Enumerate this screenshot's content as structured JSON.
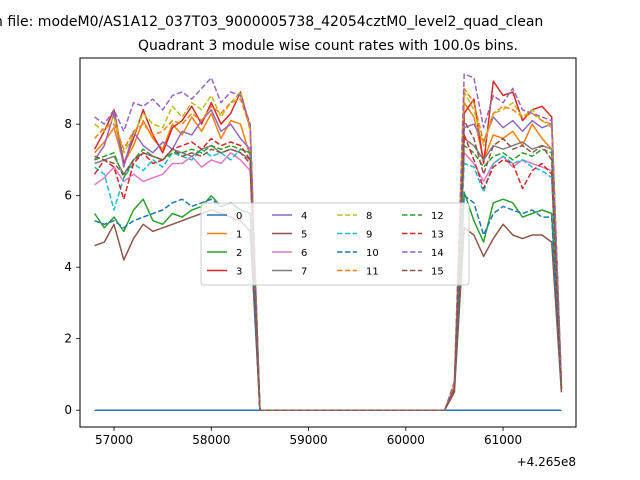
{
  "figure": {
    "suptitle": "n file: modeM0/AS1A12_037T03_9000005738_42054cztM0_level2_quad_clean",
    "title": "Quadrant 3 module wise count rates with 100.0s bins."
  },
  "chart_data": {
    "type": "line",
    "title": "Quadrant 3 module wise count rates with 100.0s bins.",
    "xlabel": "",
    "ylabel": "",
    "x_offset_label": "+4.265e8",
    "xlim": [
      56650,
      61750
    ],
    "ylim": [
      -0.47,
      9.85
    ],
    "xticks": [
      57000,
      58000,
      59000,
      60000,
      61000
    ],
    "yticks": [
      0,
      2,
      4,
      6,
      8
    ],
    "grid": false,
    "legend": {
      "location": "center",
      "ncol": 4
    },
    "x": [
      56800,
      56900,
      57000,
      57100,
      57200,
      57300,
      57400,
      57500,
      57600,
      57700,
      57800,
      57900,
      58000,
      58100,
      58200,
      58300,
      58400,
      58500,
      58600,
      58700,
      58800,
      58900,
      59000,
      59100,
      59200,
      59300,
      59400,
      59500,
      59600,
      59700,
      59800,
      59900,
      60000,
      60100,
      60200,
      60300,
      60400,
      60500,
      60600,
      60700,
      60800,
      60900,
      61000,
      61100,
      61200,
      61300,
      61400,
      61500,
      61600
    ],
    "series": [
      {
        "name": "0",
        "color": "#1f77b4",
        "dash": "solid",
        "values": [
          0,
          0,
          0,
          0,
          0,
          0,
          0,
          0,
          0,
          0,
          0,
          0,
          0,
          0,
          0,
          0,
          0,
          0,
          0,
          0,
          0,
          0,
          0,
          0,
          0,
          0,
          0,
          0,
          0,
          0,
          0,
          0,
          0,
          0,
          0,
          0,
          0,
          0,
          0,
          0,
          0,
          0,
          0,
          0,
          0,
          0,
          0,
          0,
          0
        ]
      },
      {
        "name": "1",
        "color": "#ff7f0e",
        "dash": "solid",
        "values": [
          7.2,
          7.5,
          7.9,
          6.9,
          7.4,
          8.1,
          7.6,
          7.3,
          8.0,
          7.7,
          8.2,
          7.8,
          8.3,
          7.6,
          8.1,
          8.0,
          7.1,
          0,
          0,
          0,
          0,
          0,
          0,
          0,
          0,
          0,
          0,
          0,
          0,
          0,
          0,
          0,
          0,
          0,
          0,
          0,
          0,
          0.6,
          8.6,
          8.2,
          7.0,
          7.7,
          7.6,
          7.8,
          7.4,
          8.0,
          7.6,
          7.3,
          0.6
        ]
      },
      {
        "name": "2",
        "color": "#2ca02c",
        "dash": "solid",
        "values": [
          5.5,
          5.1,
          5.4,
          5.0,
          5.6,
          5.9,
          5.3,
          5.2,
          5.5,
          5.4,
          5.6,
          5.7,
          6.0,
          5.7,
          5.8,
          5.6,
          5.5,
          0,
          0,
          0,
          0,
          0,
          0,
          0,
          0,
          0,
          0,
          0,
          0,
          0,
          0,
          0,
          0,
          0,
          0,
          0,
          0,
          0.6,
          6.1,
          5.3,
          4.7,
          5.8,
          5.9,
          5.8,
          5.4,
          5.5,
          5.6,
          5.5,
          0.6
        ]
      },
      {
        "name": "3",
        "color": "#d62728",
        "dash": "solid",
        "values": [
          7.3,
          7.8,
          8.4,
          6.9,
          7.6,
          8.4,
          7.7,
          7.2,
          7.9,
          8.1,
          8.5,
          8.0,
          8.6,
          8.0,
          8.3,
          8.9,
          7.9,
          0,
          0,
          0,
          0,
          0,
          0,
          0,
          0,
          0,
          0,
          0,
          0,
          0,
          0,
          0,
          0,
          0,
          0,
          0,
          0,
          0.7,
          8.3,
          8.7,
          6.9,
          9.2,
          8.8,
          8.9,
          8.1,
          8.4,
          8.5,
          8.2,
          0.7
        ]
      },
      {
        "name": "4",
        "color": "#9467bd",
        "dash": "solid",
        "values": [
          7.0,
          7.4,
          8.3,
          6.8,
          7.8,
          7.4,
          7.2,
          7.5,
          7.3,
          7.8,
          7.7,
          8.1,
          8.4,
          7.8,
          8.0,
          7.6,
          7.3,
          0,
          0,
          0,
          0,
          0,
          0,
          0,
          0,
          0,
          0,
          0,
          0,
          0,
          0,
          0,
          0,
          0,
          0,
          0,
          0,
          0.6,
          7.9,
          8.0,
          7.5,
          8.2,
          7.9,
          8.1,
          7.8,
          8.1,
          7.9,
          8.0,
          0.6
        ]
      },
      {
        "name": "5",
        "color": "#8c564b",
        "dash": "solid",
        "values": [
          4.6,
          4.7,
          5.2,
          4.2,
          4.8,
          5.2,
          5.0,
          5.1,
          5.2,
          5.3,
          5.4,
          5.5,
          5.6,
          5.5,
          5.4,
          5.3,
          5.0,
          0,
          0,
          0,
          0,
          0,
          0,
          0,
          0,
          0,
          0,
          0,
          0,
          0,
          0,
          0,
          0,
          0,
          0,
          0,
          0,
          0.5,
          5.1,
          4.9,
          4.3,
          4.8,
          5.2,
          4.9,
          4.8,
          4.9,
          4.9,
          4.7,
          0.5
        ]
      },
      {
        "name": "6",
        "color": "#e377c2",
        "dash": "solid",
        "values": [
          6.3,
          6.5,
          6.8,
          6.4,
          6.6,
          6.4,
          6.5,
          6.6,
          6.9,
          6.9,
          7.1,
          6.8,
          7.0,
          6.9,
          7.2,
          7.0,
          6.7,
          0,
          0,
          0,
          0,
          0,
          0,
          0,
          0,
          0,
          0,
          0,
          0,
          0,
          0,
          0,
          0,
          0,
          0,
          0,
          0,
          0.6,
          7.2,
          6.9,
          6.4,
          6.9,
          7.1,
          6.8,
          7.0,
          6.9,
          6.8,
          6.7,
          0.6
        ]
      },
      {
        "name": "7",
        "color": "#7f7f7f",
        "dash": "solid",
        "values": [
          6.9,
          7.0,
          7.1,
          6.6,
          7.0,
          7.2,
          7.1,
          7.0,
          7.3,
          7.2,
          7.1,
          7.3,
          7.4,
          7.2,
          7.3,
          7.2,
          7.0,
          0,
          0,
          0,
          0,
          0,
          0,
          0,
          0,
          0,
          0,
          0,
          0,
          0,
          0,
          0,
          0,
          0,
          0,
          0,
          0,
          0.6,
          7.6,
          7.4,
          7.0,
          7.4,
          7.3,
          7.4,
          7.5,
          7.3,
          7.4,
          7.3,
          0.6
        ]
      },
      {
        "name": "8",
        "color": "#bcbd22",
        "dash": "dashed",
        "values": [
          8.0,
          7.8,
          8.2,
          7.2,
          7.7,
          8.3,
          8.0,
          7.9,
          8.5,
          8.2,
          8.6,
          8.4,
          8.8,
          8.2,
          8.6,
          8.9,
          7.8,
          0,
          0,
          0,
          0,
          0,
          0,
          0,
          0,
          0,
          0,
          0,
          0,
          0,
          0,
          0,
          0,
          0,
          0,
          0,
          0,
          0.7,
          8.9,
          8.4,
          7.4,
          8.3,
          8.4,
          8.6,
          8.2,
          8.4,
          8.1,
          7.9,
          0.7
        ]
      },
      {
        "name": "9",
        "color": "#17becf",
        "dash": "dashed",
        "values": [
          6.8,
          6.6,
          5.6,
          6.5,
          6.9,
          6.7,
          7.0,
          6.8,
          7.2,
          7.1,
          7.0,
          7.3,
          7.1,
          7.2,
          7.0,
          7.3,
          7.2,
          0,
          0,
          0,
          0,
          0,
          0,
          0,
          0,
          0,
          0,
          0,
          0,
          0,
          0,
          0,
          0,
          0,
          0,
          0,
          0,
          0.6,
          6.9,
          6.8,
          6.1,
          6.9,
          7.1,
          6.9,
          7.0,
          6.8,
          6.7,
          6.5,
          0.6
        ]
      },
      {
        "name": "10",
        "color": "#1f77b4",
        "dash": "dashed",
        "values": [
          5.3,
          5.2,
          5.3,
          5.1,
          5.3,
          5.4,
          5.5,
          5.6,
          5.8,
          5.9,
          5.7,
          5.8,
          5.9,
          5.7,
          5.8,
          5.6,
          5.5,
          0,
          0,
          0,
          0,
          0,
          0,
          0,
          0,
          0,
          0,
          0,
          0,
          0,
          0,
          0,
          0,
          0,
          0,
          0,
          0,
          0.6,
          6.0,
          5.8,
          4.9,
          5.5,
          5.7,
          5.6,
          5.5,
          5.6,
          5.4,
          5.4,
          0.6
        ]
      },
      {
        "name": "11",
        "color": "#ff7f0e",
        "dash": "dashed",
        "values": [
          7.6,
          7.9,
          8.0,
          7.3,
          7.8,
          8.0,
          7.7,
          7.8,
          8.1,
          8.0,
          8.3,
          8.1,
          8.5,
          8.3,
          8.6,
          8.7,
          7.9,
          0,
          0,
          0,
          0,
          0,
          0,
          0,
          0,
          0,
          0,
          0,
          0,
          0,
          0,
          0,
          0,
          0,
          0,
          0,
          0,
          0.7,
          9.0,
          8.6,
          7.5,
          8.3,
          8.5,
          8.4,
          8.2,
          8.3,
          8.1,
          8.0,
          0.7
        ]
      },
      {
        "name": "12",
        "color": "#2ca02c",
        "dash": "dashed",
        "values": [
          7.0,
          7.1,
          7.2,
          6.5,
          7.0,
          7.3,
          7.1,
          7.0,
          7.2,
          7.2,
          7.3,
          7.2,
          7.4,
          7.3,
          7.4,
          7.3,
          7.2,
          0,
          0,
          0,
          0,
          0,
          0,
          0,
          0,
          0,
          0,
          0,
          0,
          0,
          0,
          0,
          0,
          0,
          0,
          0,
          0,
          0.6,
          7.4,
          7.2,
          6.8,
          7.1,
          7.2,
          7.0,
          7.2,
          7.1,
          7.3,
          7.2,
          0.6
        ]
      },
      {
        "name": "13",
        "color": "#d62728",
        "dash": "dashed",
        "values": [
          6.6,
          7.0,
          6.8,
          5.9,
          6.9,
          7.2,
          6.9,
          7.0,
          7.3,
          7.4,
          7.5,
          7.3,
          7.6,
          7.4,
          7.5,
          7.4,
          7.0,
          0,
          0,
          0,
          0,
          0,
          0,
          0,
          0,
          0,
          0,
          0,
          0,
          0,
          0,
          0,
          0,
          0,
          0,
          0,
          0,
          0.6,
          7.7,
          7.0,
          6.2,
          6.8,
          7.0,
          6.9,
          6.2,
          6.7,
          6.9,
          6.6,
          0.6
        ]
      },
      {
        "name": "14",
        "color": "#9467bd",
        "dash": "dashed",
        "values": [
          8.2,
          8.0,
          8.4,
          7.8,
          8.6,
          8.5,
          8.7,
          8.4,
          8.8,
          8.9,
          8.7,
          9.0,
          9.3,
          8.6,
          8.9,
          8.8,
          8.0,
          0,
          0,
          0,
          0,
          0,
          0,
          0,
          0,
          0,
          0,
          0,
          0,
          0,
          0,
          0,
          0,
          0,
          0,
          0,
          0,
          0.8,
          9.4,
          9.3,
          7.9,
          8.8,
          8.6,
          9.0,
          8.4,
          8.3,
          8.2,
          8.1,
          0.8
        ]
      },
      {
        "name": "15",
        "color": "#8c564b",
        "dash": "dashed",
        "values": [
          7.1,
          7.0,
          6.9,
          6.6,
          7.0,
          7.2,
          7.1,
          7.0,
          7.3,
          7.1,
          7.2,
          7.1,
          7.3,
          7.2,
          7.3,
          7.2,
          6.9,
          0,
          0,
          0,
          0,
          0,
          0,
          0,
          0,
          0,
          0,
          0,
          0,
          0,
          0,
          0,
          0,
          0,
          0,
          0,
          0,
          0.6,
          8.1,
          7.6,
          6.6,
          7.4,
          7.6,
          7.3,
          7.4,
          7.2,
          7.4,
          7.0,
          0.6
        ]
      }
    ]
  }
}
